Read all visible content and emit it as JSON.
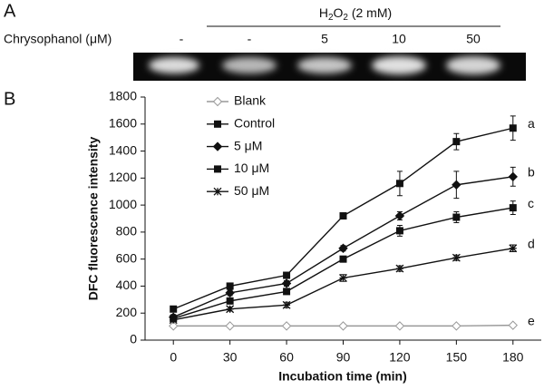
{
  "panel_a": {
    "label": "A",
    "treatment_label": [
      "H",
      "2",
      "O",
      "2",
      " (2 mM)"
    ],
    "row_label": "Chrysophanol (μM)",
    "lane_labels": [
      "-",
      "-",
      "5",
      "10",
      "50"
    ]
  },
  "chart_data": {
    "type": "line",
    "panel_label": "B",
    "x_label": "Incubation time (min)",
    "y_label": "DFC fluorescence intensity",
    "x": [
      0,
      30,
      60,
      90,
      120,
      150,
      180
    ],
    "xlim": [
      -15,
      195
    ],
    "xticks": [
      0,
      30,
      60,
      90,
      120,
      150,
      180
    ],
    "ylim": [
      0,
      1800
    ],
    "yticks": [
      0,
      200,
      400,
      600,
      800,
      1000,
      1200,
      1400,
      1600,
      1800
    ],
    "legend_position": "upper-left",
    "series": [
      {
        "name": "Blank",
        "color": "#999999",
        "marker": "open-diamond",
        "letter": "e",
        "values": [
          105,
          105,
          105,
          105,
          105,
          105,
          110
        ],
        "errors": [
          5,
          5,
          5,
          5,
          5,
          5,
          5
        ]
      },
      {
        "name": "Control",
        "color": "#111111",
        "marker": "square",
        "letter": "a",
        "values": [
          230,
          400,
          480,
          920,
          1160,
          1470,
          1570
        ],
        "errors": [
          10,
          15,
          15,
          20,
          90,
          60,
          90
        ]
      },
      {
        "name": "5 μM",
        "color": "#111111",
        "marker": "diamond",
        "letter": "b",
        "values": [
          170,
          350,
          420,
          680,
          920,
          1150,
          1210
        ],
        "errors": [
          20,
          20,
          20,
          20,
          30,
          100,
          70
        ]
      },
      {
        "name": "10 μM",
        "color": "#111111",
        "marker": "square",
        "letter": "c",
        "values": [
          160,
          290,
          360,
          600,
          810,
          910,
          980
        ],
        "errors": [
          15,
          15,
          15,
          15,
          40,
          40,
          50
        ]
      },
      {
        "name": "50 μM",
        "color": "#111111",
        "marker": "star",
        "letter": "d",
        "values": [
          150,
          230,
          260,
          460,
          530,
          610,
          680
        ],
        "errors": [
          15,
          15,
          20,
          25,
          20,
          20,
          25
        ]
      }
    ]
  }
}
